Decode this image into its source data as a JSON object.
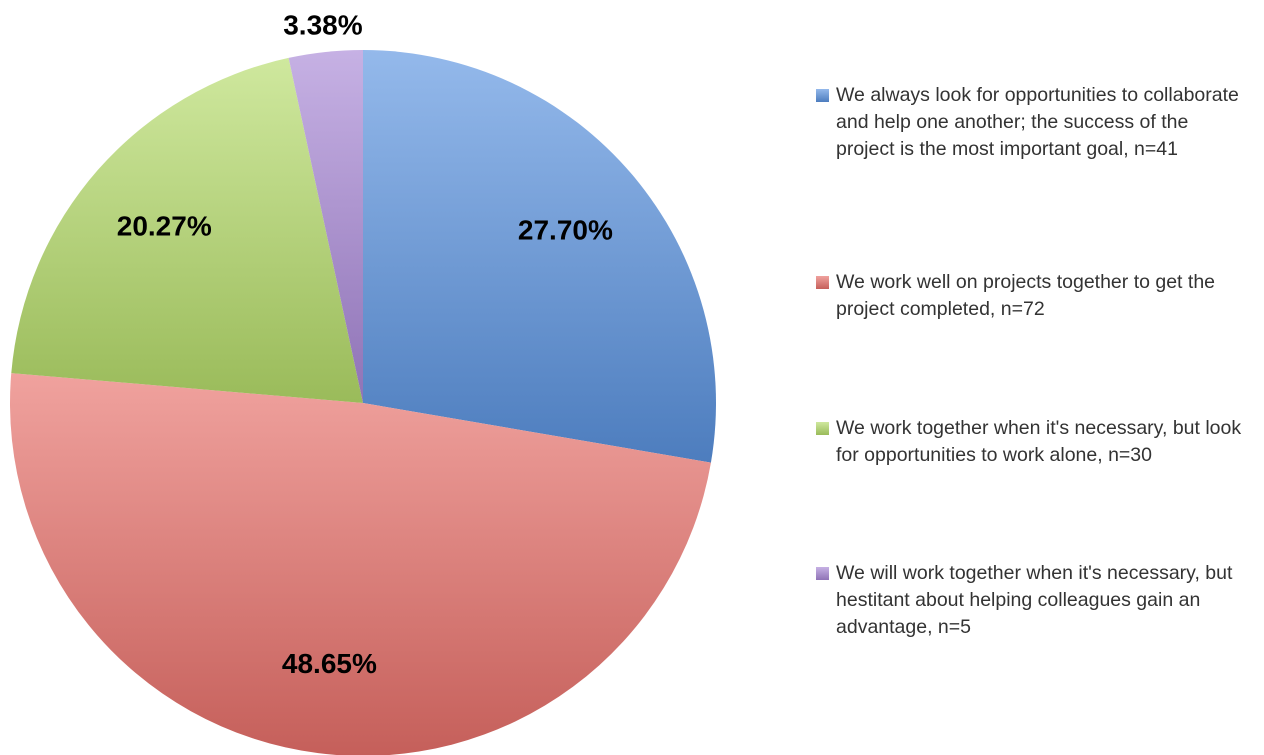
{
  "chart_data": {
    "type": "pie",
    "categories": [
      "We always look for opportunities to collaborate and help one another; the success of the project is the most important goal, n=41",
      "We work well on projects together to get the project completed, n=72",
      "We work together when it's necessary, but look for opportunities to work alone, n=30",
      "We will work together when it's necessary, but hestitant about helping colleagues gain an advantage, n=5"
    ],
    "values": [
      27.7,
      48.65,
      20.27,
      3.38
    ],
    "value_labels": [
      "27.70%",
      "48.65%",
      "20.27%",
      "3.38%"
    ],
    "colors": [
      "#5b93e0",
      "#e8706a",
      "#b5dc6a",
      "#a887d6"
    ],
    "legend": "right"
  }
}
